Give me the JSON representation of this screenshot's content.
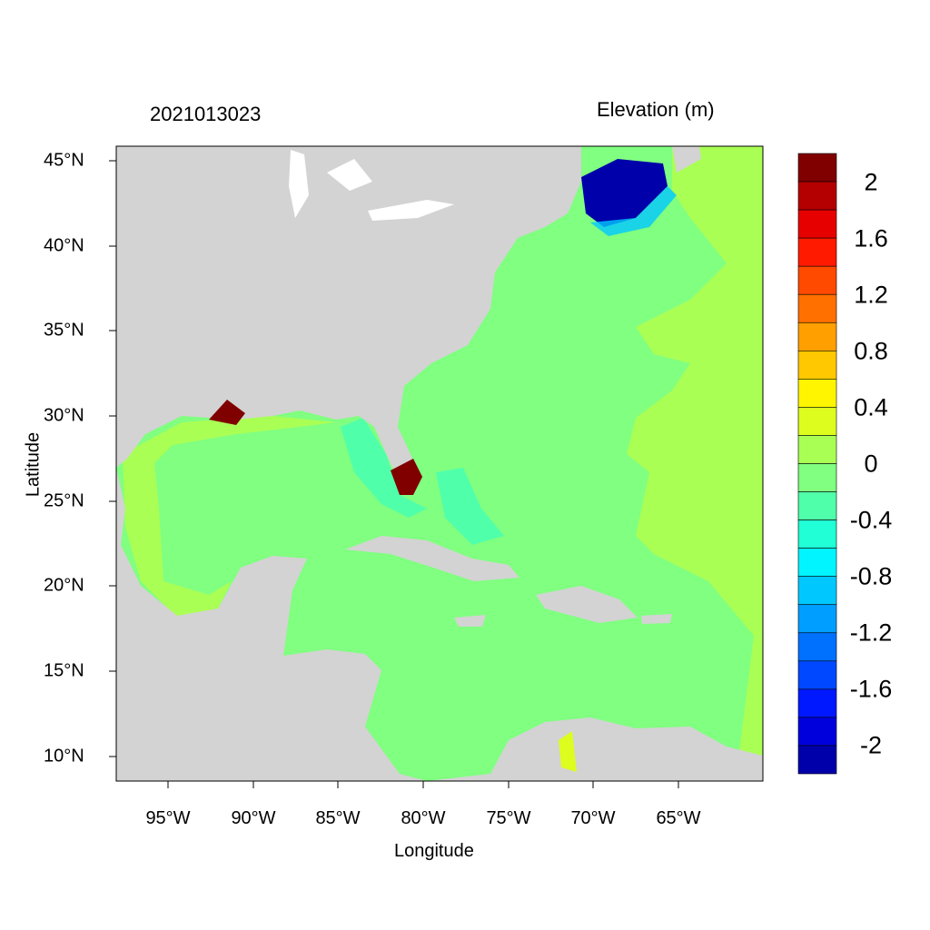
{
  "title_left": "2021013023",
  "title_right": "Elevation (m)",
  "xlabel": "Longitude",
  "ylabel": "Latitude",
  "x_ticks": [
    "95°W",
    "90°W",
    "85°W",
    "80°W",
    "75°W",
    "70°W",
    "65°W"
  ],
  "y_ticks": [
    "45°N",
    "40°N",
    "35°N",
    "30°N",
    "25°N",
    "20°N",
    "15°N",
    "10°N"
  ],
  "colorbar": {
    "labels": [
      "2",
      "1.6",
      "1.2",
      "0.8",
      "0.4",
      "0",
      "-0.4",
      "-0.8",
      "-1.2",
      "-1.6",
      "-2"
    ],
    "colors": [
      "#800000",
      "#b40000",
      "#e60000",
      "#ff1a00",
      "#ff4a00",
      "#ff7000",
      "#ff9f00",
      "#ffc800",
      "#fff500",
      "#dcfd1e",
      "#aaff55",
      "#80ff80",
      "#50ffaa",
      "#20ffd5",
      "#00f5ff",
      "#00c8ff",
      "#009fff",
      "#0070ff",
      "#0048ff",
      "#0018ff",
      "#0000dc",
      "#0000aa"
    ]
  },
  "colors": {
    "land": "#d3d3d3",
    "ocean": "#80ff80",
    "shelf": "#aaff55"
  }
}
